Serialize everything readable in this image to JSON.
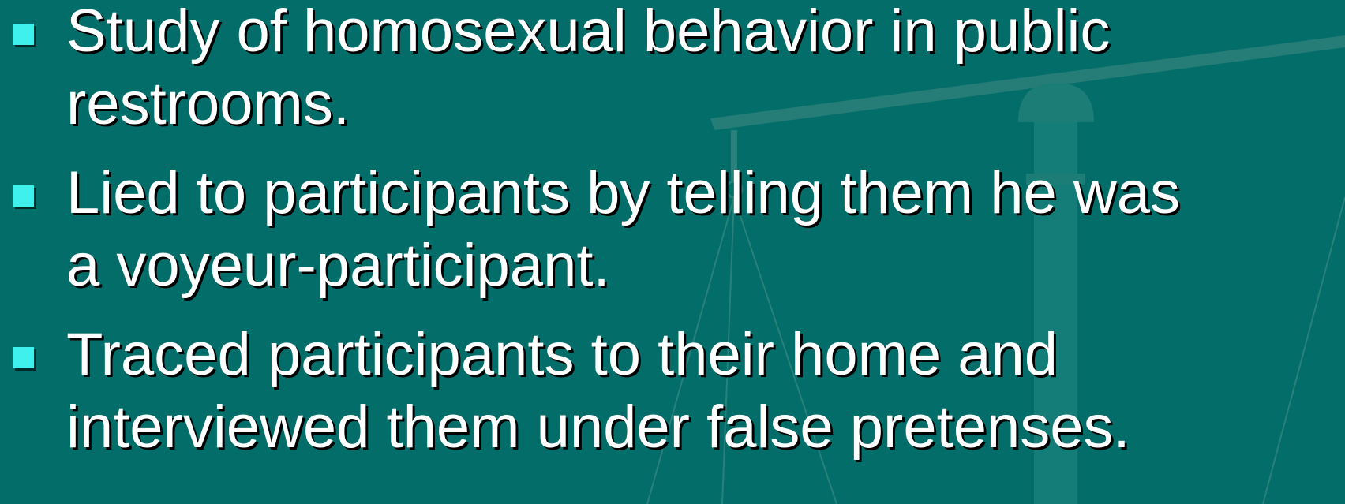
{
  "bullets": [
    {
      "lines": [
        "Study of homosexual behavior in public",
        "restrooms."
      ]
    },
    {
      "lines": [
        "Lied to participants by telling them he was",
        "a voyeur-participant."
      ]
    },
    {
      "lines": [
        "Traced participants to their home and",
        "interviewed them under false pretenses."
      ]
    }
  ]
}
